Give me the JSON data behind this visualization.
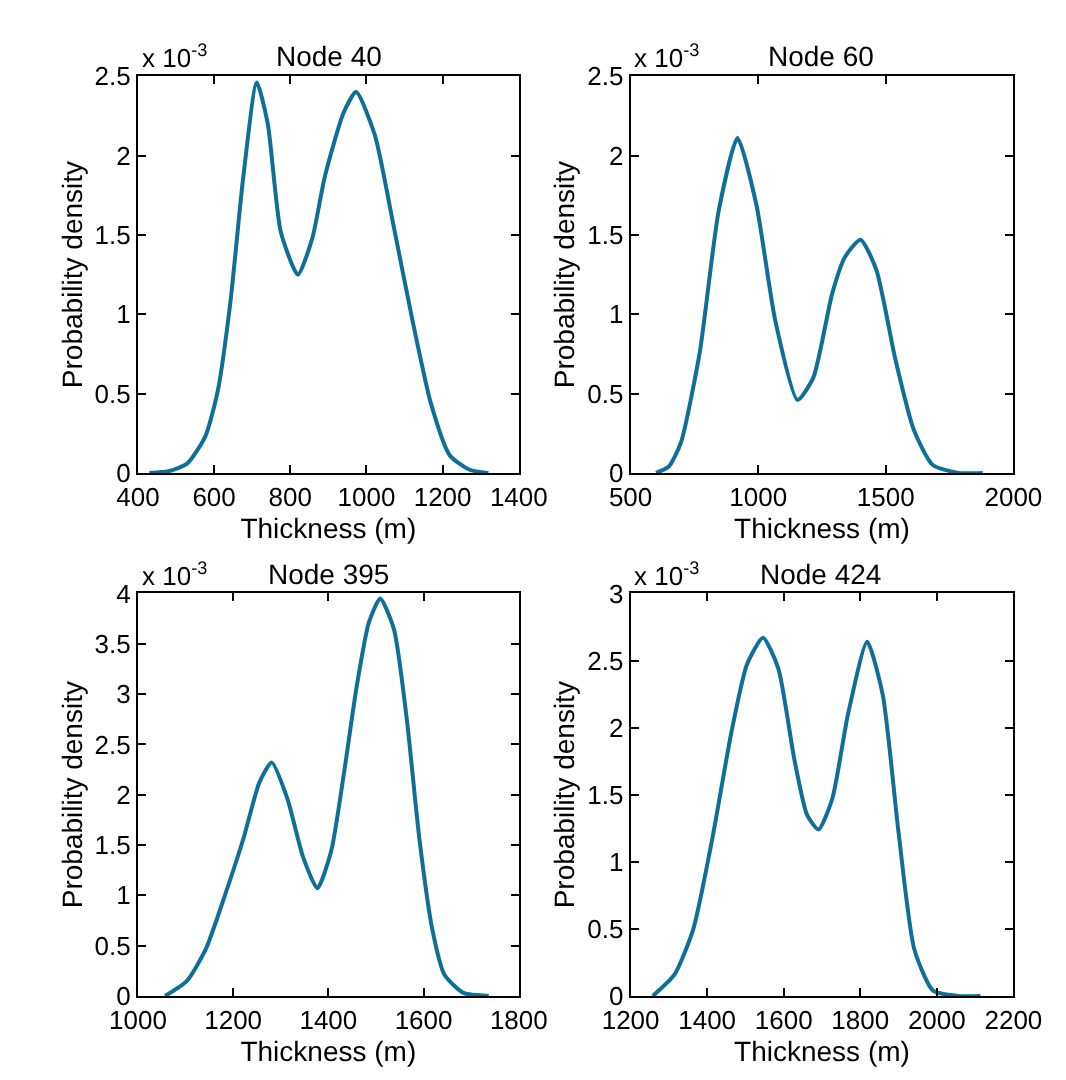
{
  "chart_data": [
    {
      "type": "line",
      "title": "Node 40",
      "xlabel": "Thickness (m)",
      "ylabel": "Probability density",
      "annotations": [
        "x 10$^{-3}$"
      ],
      "color": "#0e6f99",
      "xlim": [
        400,
        1400
      ],
      "xticks": [
        400,
        600,
        800,
        1000,
        1200,
        1400
      ],
      "ylim": [
        0,
        2.5
      ],
      "yticks": [
        0,
        0.5,
        1,
        1.5,
        2,
        2.5
      ],
      "x": [
        430,
        480,
        530,
        577,
        610,
        643,
        676,
        712,
        741,
        775,
        820,
        858,
        891,
        940,
        973,
        1022,
        1071,
        1121,
        1169,
        1219,
        1271,
        1320
      ],
      "values": [
        0,
        0.01,
        0.06,
        0.23,
        0.52,
        1.08,
        1.85,
        2.46,
        2.2,
        1.52,
        1.25,
        1.48,
        1.87,
        2.27,
        2.4,
        2.13,
        1.56,
        0.96,
        0.44,
        0.11,
        0.02,
        0
      ]
    },
    {
      "type": "line",
      "title": "Node 60",
      "xlabel": "Thickness (m)",
      "ylabel": "Probability density",
      "annotations": [
        "x 10$^{-3}$"
      ],
      "color": "#0e6f99",
      "xlim": [
        500,
        2000
      ],
      "xticks": [
        500,
        1000,
        1500,
        2000
      ],
      "ylim": [
        0,
        2.5
      ],
      "yticks": [
        0,
        0.5,
        1,
        1.5,
        2,
        2.5
      ],
      "x": [
        600,
        650,
        697,
        771,
        845,
        919,
        993,
        1067,
        1154,
        1216,
        1290,
        1340,
        1401,
        1463,
        1537,
        1610,
        1684,
        1784,
        1880
      ],
      "values": [
        0,
        0.04,
        0.19,
        0.76,
        1.65,
        2.11,
        1.69,
        0.96,
        0.46,
        0.6,
        1.13,
        1.36,
        1.47,
        1.28,
        0.72,
        0.27,
        0.05,
        0,
        0
      ]
    },
    {
      "type": "line",
      "title": "Node 395",
      "xlabel": "Thickness (m)",
      "ylabel": "Probability density",
      "annotations": [
        "x 10$^{-3}$"
      ],
      "color": "#0e6f99",
      "xlim": [
        1000,
        1800
      ],
      "xticks": [
        1000,
        1200,
        1400,
        1600,
        1800
      ],
      "ylim": [
        0,
        4
      ],
      "yticks": [
        0,
        0.5,
        1,
        1.5,
        2,
        2.5,
        3,
        3.5,
        4
      ],
      "x": [
        1057,
        1103,
        1143,
        1182,
        1222,
        1255,
        1281,
        1314,
        1347,
        1377,
        1406,
        1433,
        1459,
        1485,
        1509,
        1538,
        1565,
        1591,
        1618,
        1644,
        1684,
        1737
      ],
      "values": [
        0,
        0.15,
        0.47,
        0.99,
        1.57,
        2.12,
        2.32,
        1.96,
        1.38,
        1.07,
        1.44,
        2.22,
        3.06,
        3.71,
        3.95,
        3.64,
        2.74,
        1.57,
        0.67,
        0.21,
        0.03,
        0
      ]
    },
    {
      "type": "line",
      "title": "Node 424",
      "xlabel": "Thickness (m)",
      "ylabel": "Probability density",
      "annotations": [
        "x 10$^{-3}$"
      ],
      "color": "#0e6f99",
      "xlim": [
        1200,
        2200
      ],
      "xticks": [
        1200,
        1400,
        1600,
        1800,
        2000,
        2200
      ],
      "ylim": [
        0,
        3
      ],
      "yticks": [
        0,
        0.5,
        1,
        1.5,
        2,
        2.5,
        3
      ],
      "x": [
        1258,
        1315,
        1364,
        1414,
        1463,
        1504,
        1546,
        1586,
        1628,
        1661,
        1691,
        1727,
        1768,
        1818,
        1859,
        1900,
        1941,
        1990,
        2056,
        2114
      ],
      "values": [
        0,
        0.16,
        0.5,
        1.18,
        1.96,
        2.47,
        2.67,
        2.44,
        1.76,
        1.35,
        1.24,
        1.47,
        2.1,
        2.64,
        2.24,
        1.22,
        0.35,
        0.04,
        0,
        0
      ]
    }
  ]
}
